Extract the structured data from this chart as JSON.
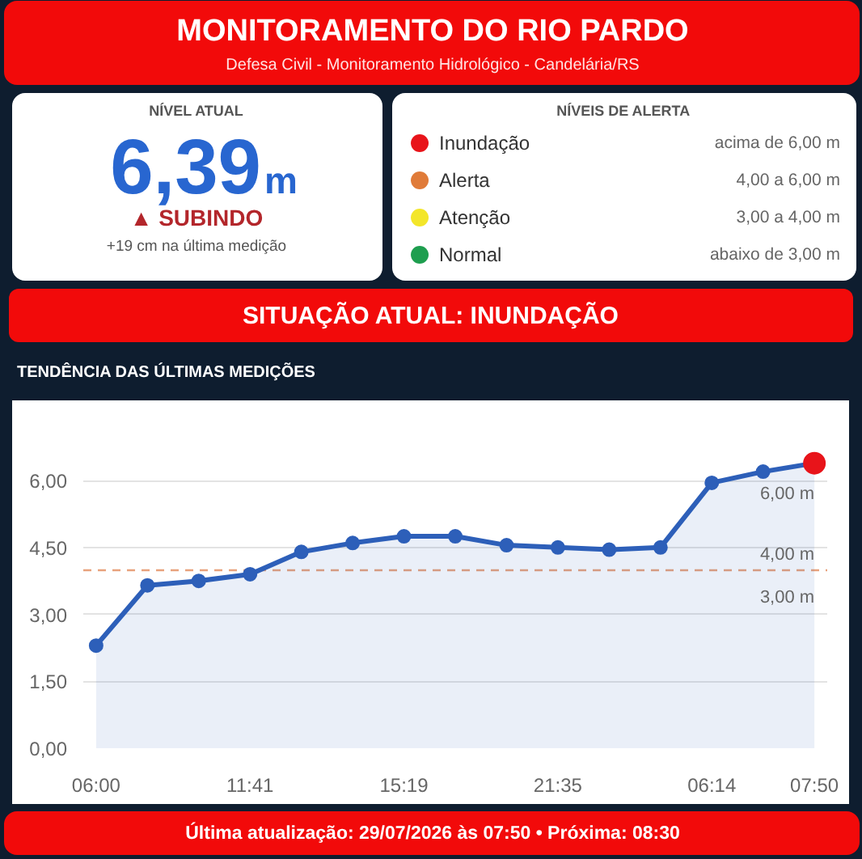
{
  "chart_data": [
    {
      "type": "other",
      "title": "MONITORAMENTO DO RIO PARDO",
      "subtitle": "Defesa Civil - Monitoramento Hidrológico - Candelária/RS",
      "annotations": [
        "SITUAÇÃO ATUAL: INUNDAÇÃO",
        "Última atualização: 29/07/2026 às 07:50 • Próxima: 08:30"
      ]
    },
    {
      "type": "other",
      "title": "NÍVEL ATUAL",
      "annotations": [
        "6,39",
        "m",
        "▲ SUBINDO",
        "+19 cm na última medição"
      ]
    },
    {
      "type": "other",
      "title": "NÍVEIS DE ALERTA",
      "categories": [
        "Inundação",
        "Alerta",
        "Atenção",
        "Normal"
      ],
      "colors": [
        "#e8141a",
        "#e07b39",
        "#f3e62a",
        "#1e9e4f"
      ],
      "annotations": [
        "acima de 6,00 m",
        "4,00 a 6,00 m",
        "3,00 a 4,00 m",
        "abaixo de 3,00 m"
      ]
    },
    {
      "type": "area",
      "title": "TENDÊNCIA DAS ÚLTIMAS MEDIÇÕES",
      "categories": [
        "06:00",
        null,
        null,
        "11:41",
        null,
        null,
        "15:19",
        null,
        null,
        "21:35",
        null,
        null,
        "06:14",
        null,
        "07:50"
      ],
      "series": [
        {
          "color": "#2d5fb9",
          "values": [
            2.3,
            3.65,
            3.75,
            3.9,
            4.4,
            4.6,
            4.75,
            4.75,
            4.55,
            4.5,
            4.45,
            4.5,
            5.95,
            6.2,
            6.39
          ],
          "colors": [
            "#2d5fb9",
            "#2d5fb9",
            "#2d5fb9",
            "#2d5fb9",
            "#2d5fb9",
            "#2d5fb9",
            "#2d5fb9",
            "#2d5fb9",
            "#2d5fb9",
            "#2d5fb9",
            "#2d5fb9",
            "#2d5fb9",
            "#2d5fb9",
            "#2d5fb9",
            "#e8141a"
          ]
        }
      ],
      "ylim": [
        0,
        7
      ],
      "yticks": [
        {
          "value": 0,
          "label": "0,00"
        },
        {
          "value": 1.5,
          "label": "1,50"
        },
        {
          "value": 3,
          "label": "3,00"
        },
        {
          "value": 4.5,
          "label": "4,50"
        },
        {
          "value": 6,
          "label": "6,00"
        }
      ],
      "grid": "y",
      "marker": "circle",
      "ref_lines": [
        {
          "axis": "y",
          "value": 4,
          "label": "4,00 m",
          "color": "#e8a27c",
          "line_style": "dashed"
        }
      ],
      "annotations": [
        "6,00 m",
        "3,00 m"
      ]
    }
  ]
}
